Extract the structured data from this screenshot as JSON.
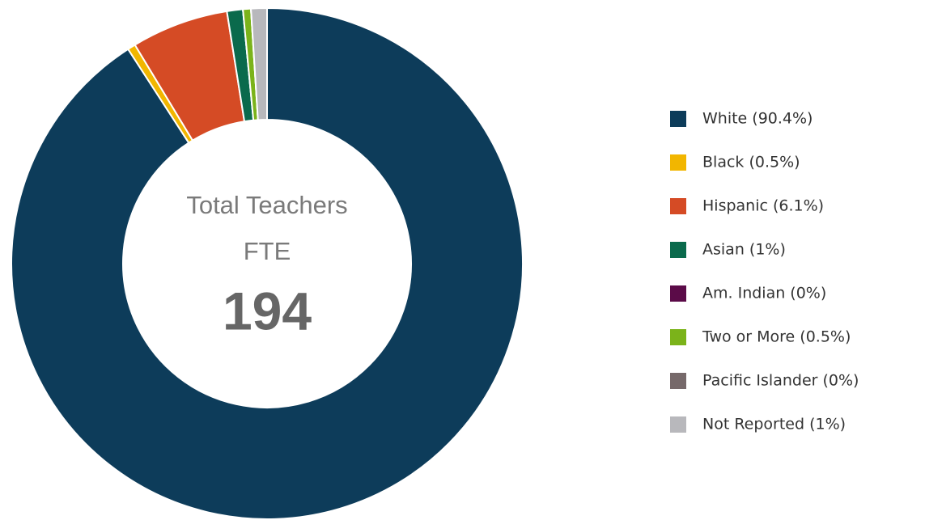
{
  "chart_data": {
    "type": "donut",
    "categories": [
      "White (90.4%)",
      "Black (0.5%)",
      "Hispanic (6.1%)",
      "Asian (1%)",
      "Am. Indian (0%)",
      "Two or More (0.5%)",
      "Pacific Islander (0%)",
      "Not Reported (1%)"
    ],
    "values": [
      90.4,
      0.5,
      6.1,
      1,
      0,
      0.5,
      0,
      1
    ],
    "colors": [
      "#0d3c5a",
      "#f2b600",
      "#d54b25",
      "#0a6a4c",
      "#5b0b48",
      "#7bb31a",
      "#76696a",
      "#b8b8bc"
    ],
    "center_title": [
      "Total Teachers",
      "FTE"
    ],
    "center_value": 194,
    "legend": "right"
  }
}
